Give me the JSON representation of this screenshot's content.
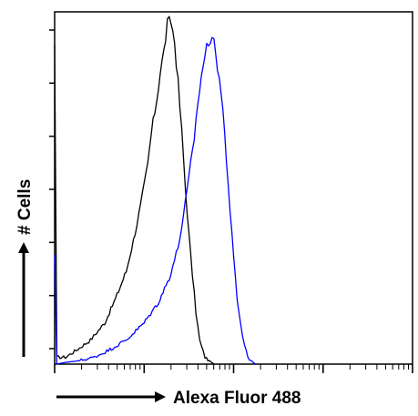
{
  "chart_data": {
    "type": "line",
    "title": "",
    "xlabel": "Alexa Fluor 488",
    "ylabel": "# Cells",
    "x_scale": "log",
    "y_tick_marks": 7,
    "grid": false,
    "legend": "none",
    "xlim": [
      0,
      1
    ],
    "ylim": [
      0,
      1
    ],
    "series": [
      {
        "color": "#000000",
        "points": [
          [
            0.0,
            0.93
          ],
          [
            0.006,
            0.02
          ],
          [
            0.03,
            0.02
          ],
          [
            0.06,
            0.04
          ],
          [
            0.1,
            0.07
          ],
          [
            0.14,
            0.12
          ],
          [
            0.17,
            0.19
          ],
          [
            0.2,
            0.27
          ],
          [
            0.22,
            0.36
          ],
          [
            0.24,
            0.46
          ],
          [
            0.26,
            0.58
          ],
          [
            0.27,
            0.67
          ],
          [
            0.285,
            0.77
          ],
          [
            0.295,
            0.85
          ],
          [
            0.305,
            0.91
          ],
          [
            0.315,
            0.99
          ],
          [
            0.325,
            1.0
          ],
          [
            0.335,
            0.94
          ],
          [
            0.345,
            0.82
          ],
          [
            0.355,
            0.68
          ],
          [
            0.365,
            0.52
          ],
          [
            0.375,
            0.38
          ],
          [
            0.385,
            0.26
          ],
          [
            0.395,
            0.15
          ],
          [
            0.405,
            0.07
          ],
          [
            0.42,
            0.02
          ],
          [
            0.445,
            0.0
          ]
        ]
      },
      {
        "color": "#0000ff",
        "points": [
          [
            0.0,
            0.32
          ],
          [
            0.006,
            0.0
          ],
          [
            0.03,
            0.005
          ],
          [
            0.07,
            0.01
          ],
          [
            0.11,
            0.02
          ],
          [
            0.15,
            0.04
          ],
          [
            0.2,
            0.07
          ],
          [
            0.25,
            0.12
          ],
          [
            0.29,
            0.18
          ],
          [
            0.32,
            0.25
          ],
          [
            0.345,
            0.34
          ],
          [
            0.36,
            0.43
          ],
          [
            0.375,
            0.54
          ],
          [
            0.39,
            0.66
          ],
          [
            0.4,
            0.76
          ],
          [
            0.41,
            0.84
          ],
          [
            0.42,
            0.9
          ],
          [
            0.43,
            0.94
          ],
          [
            0.44,
            0.96
          ],
          [
            0.45,
            0.9
          ],
          [
            0.46,
            0.84
          ],
          [
            0.47,
            0.74
          ],
          [
            0.48,
            0.6
          ],
          [
            0.49,
            0.45
          ],
          [
            0.5,
            0.31
          ],
          [
            0.51,
            0.19
          ],
          [
            0.525,
            0.08
          ],
          [
            0.54,
            0.02
          ],
          [
            0.56,
            0.0
          ]
        ]
      }
    ]
  },
  "colors": {
    "axis": "#000000",
    "control_histogram": "#000000",
    "sample_histogram": "#0000ff"
  }
}
